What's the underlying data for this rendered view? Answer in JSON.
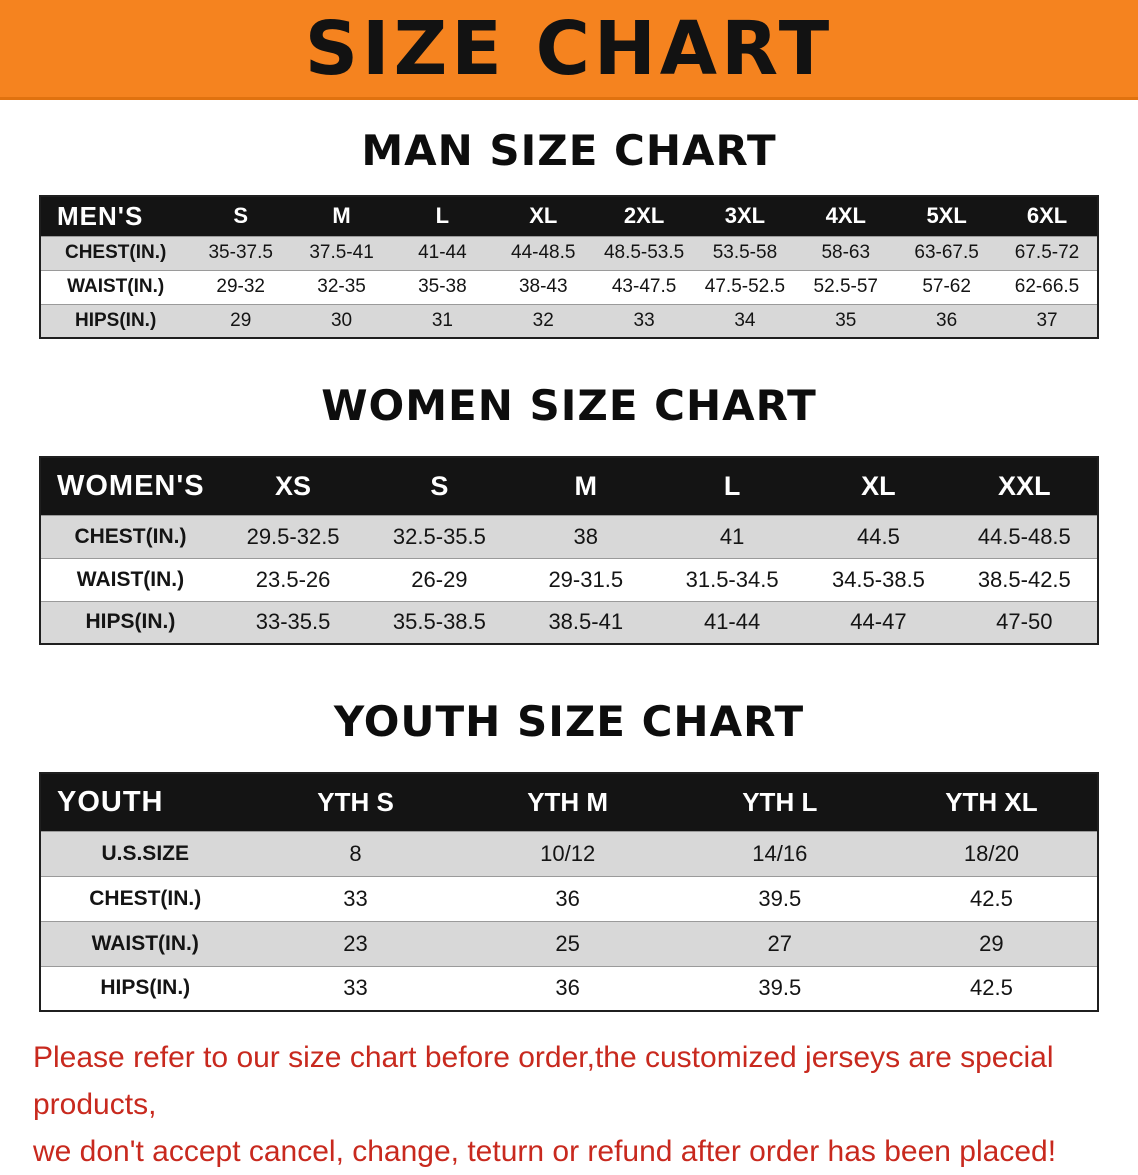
{
  "banner": {
    "title": "SIZE CHART"
  },
  "mens": {
    "heading": "MAN SIZE CHART",
    "header": [
      "MEN'S",
      "S",
      "M",
      "L",
      "XL",
      "2XL",
      "3XL",
      "4XL",
      "5XL",
      "6XL"
    ],
    "rows": [
      {
        "label": "CHEST(IN.)",
        "values": [
          "35-37.5",
          "37.5-41",
          "41-44",
          "44-48.5",
          "48.5-53.5",
          "53.5-58",
          "58-63",
          "63-67.5",
          "67.5-72"
        ]
      },
      {
        "label": "WAIST(IN.)",
        "values": [
          "29-32",
          "32-35",
          "35-38",
          "38-43",
          "43-47.5",
          "47.5-52.5",
          "52.5-57",
          "57-62",
          "62-66.5"
        ]
      },
      {
        "label": "HIPS(IN.)",
        "values": [
          "29",
          "30",
          "31",
          "32",
          "33",
          "34",
          "35",
          "36",
          "37"
        ]
      }
    ]
  },
  "womens": {
    "heading": "WOMEN SIZE CHART",
    "header": [
      "WOMEN'S",
      "XS",
      "S",
      "M",
      "L",
      "XL",
      "XXL"
    ],
    "rows": [
      {
        "label": "CHEST(IN.)",
        "values": [
          "29.5-32.5",
          "32.5-35.5",
          "38",
          "41",
          "44.5",
          "44.5-48.5"
        ]
      },
      {
        "label": "WAIST(IN.)",
        "values": [
          "23.5-26",
          "26-29",
          "29-31.5",
          "31.5-34.5",
          "34.5-38.5",
          "38.5-42.5"
        ]
      },
      {
        "label": "HIPS(IN.)",
        "values": [
          "33-35.5",
          "35.5-38.5",
          "38.5-41",
          "41-44",
          "44-47",
          "47-50"
        ]
      }
    ]
  },
  "youth": {
    "heading": "YOUTH SIZE CHART",
    "header": [
      "YOUTH",
      "YTH S",
      "YTH M",
      "YTH L",
      "YTH XL"
    ],
    "rows": [
      {
        "label": "U.S.SIZE",
        "values": [
          "8",
          "10/12",
          "14/16",
          "18/20"
        ]
      },
      {
        "label": "CHEST(IN.)",
        "values": [
          "33",
          "36",
          "39.5",
          "42.5"
        ]
      },
      {
        "label": "WAIST(IN.)",
        "values": [
          "23",
          "25",
          "27",
          "29"
        ]
      },
      {
        "label": "HIPS(IN.)",
        "values": [
          "33",
          "36",
          "39.5",
          "42.5"
        ]
      }
    ]
  },
  "disclaimer": {
    "line1": "Please refer to our size chart before order,the customized jerseys are special products,",
    "line2": "we don't accept cancel, change, teturn or refund after order has been placed!"
  },
  "colors": {
    "banner_orange": "#f5831f",
    "header_black": "#141414",
    "row_gray": "#d8d8d8",
    "disclaimer_red": "#c8291e"
  }
}
